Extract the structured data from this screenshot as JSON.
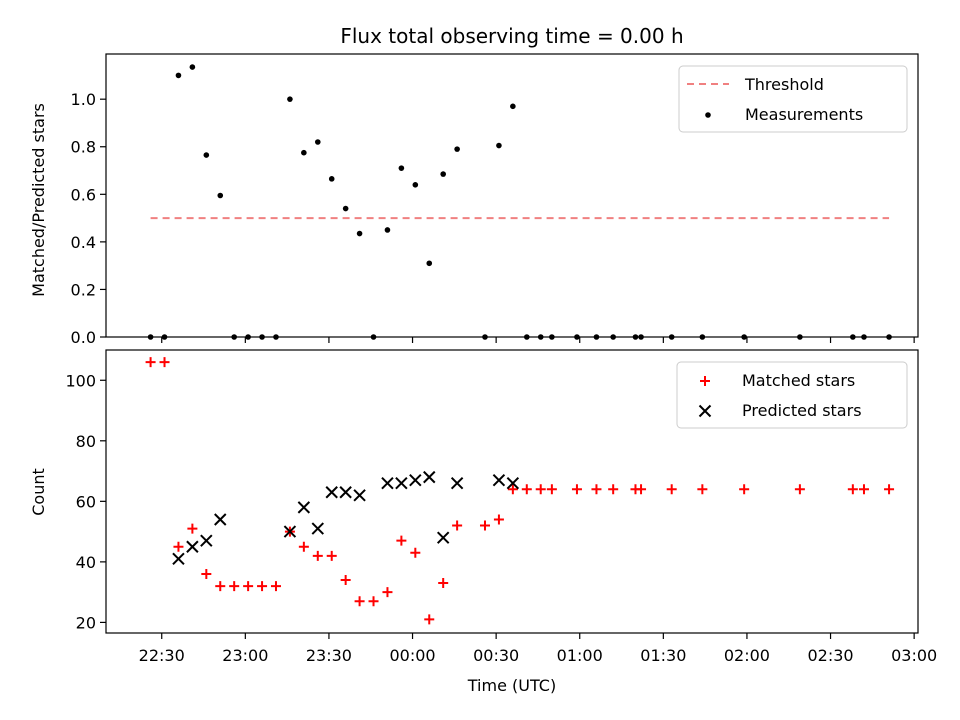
{
  "chart_data": {
    "title": "Flux total observing time = 0.00 h",
    "xlabel": "Time (UTC)",
    "x_ticks": [
      "22:30",
      "23:00",
      "23:30",
      "00:00",
      "00:30",
      "01:00",
      "01:30",
      "02:00",
      "02:30",
      "03:00"
    ],
    "panels": [
      {
        "type": "scatter",
        "ylabel": "Matched/Predicted stars",
        "ylim": [
          0,
          1.19
        ],
        "y_ticks": [
          "0.0",
          "0.2",
          "0.4",
          "0.6",
          "0.8",
          "1.0"
        ],
        "legend": {
          "position": "top-right"
        },
        "series": [
          {
            "name": "Threshold",
            "kind": "dashed-line",
            "color": "#f08080",
            "points": [
              [
                "22:26",
                0.5
              ],
              [
                "02:51",
                0.5
              ]
            ]
          },
          {
            "name": "Measurements",
            "kind": "dot",
            "color": "#000000",
            "points": [
              [
                "22:26",
                0
              ],
              [
                "22:31",
                0
              ],
              [
                "22:36",
                1.1
              ],
              [
                "22:41",
                1.135
              ],
              [
                "22:46",
                0.765
              ],
              [
                "22:51",
                0.595
              ],
              [
                "22:56",
                0
              ],
              [
                "23:01",
                0
              ],
              [
                "23:06",
                0
              ],
              [
                "23:11",
                0
              ],
              [
                "23:16",
                1.0
              ],
              [
                "23:21",
                0.775
              ],
              [
                "23:26",
                0.82
              ],
              [
                "23:31",
                0.665
              ],
              [
                "23:36",
                0.54
              ],
              [
                "23:41",
                0.435
              ],
              [
                "23:46",
                0
              ],
              [
                "23:51",
                0.45
              ],
              [
                "23:56",
                0.71
              ],
              [
                "00:01",
                0.64
              ],
              [
                "00:06",
                0.31
              ],
              [
                "00:11",
                0.685
              ],
              [
                "00:16",
                0.79
              ],
              [
                "00:26",
                0
              ],
              [
                "00:31",
                0.805
              ],
              [
                "00:36",
                0.97
              ],
              [
                "00:41",
                0
              ],
              [
                "00:46",
                0
              ],
              [
                "00:50",
                0
              ],
              [
                "00:59",
                0
              ],
              [
                "01:06",
                0
              ],
              [
                "01:12",
                0
              ],
              [
                "01:20",
                0
              ],
              [
                "01:22",
                0
              ],
              [
                "01:33",
                0
              ],
              [
                "01:44",
                0
              ],
              [
                "01:59",
                0
              ],
              [
                "02:19",
                0
              ],
              [
                "02:38",
                0
              ],
              [
                "02:42",
                0
              ],
              [
                "02:51",
                0
              ]
            ]
          }
        ]
      },
      {
        "type": "scatter",
        "ylabel": "Count",
        "ylim": [
          16.5,
          110
        ],
        "y_ticks": [
          "20",
          "40",
          "60",
          "80",
          "100"
        ],
        "legend": {
          "position": "top-right"
        },
        "series": [
          {
            "name": "Matched stars",
            "marker": "plus",
            "color": "#ff0000",
            "points": [
              [
                "22:26",
                106
              ],
              [
                "22:31",
                106
              ],
              [
                "22:36",
                45
              ],
              [
                "22:41",
                51
              ],
              [
                "22:46",
                36
              ],
              [
                "22:51",
                32
              ],
              [
                "22:56",
                32
              ],
              [
                "23:01",
                32
              ],
              [
                "23:06",
                32
              ],
              [
                "23:11",
                32
              ],
              [
                "23:16",
                50
              ],
              [
                "23:21",
                45
              ],
              [
                "23:26",
                42
              ],
              [
                "23:31",
                42
              ],
              [
                "23:36",
                34
              ],
              [
                "23:41",
                27
              ],
              [
                "23:46",
                27
              ],
              [
                "23:51",
                30
              ],
              [
                "23:56",
                47
              ],
              [
                "00:01",
                43
              ],
              [
                "00:06",
                21
              ],
              [
                "00:11",
                33
              ],
              [
                "00:16",
                52
              ],
              [
                "00:26",
                52
              ],
              [
                "00:31",
                54
              ],
              [
                "00:36",
                64
              ],
              [
                "00:41",
                64
              ],
              [
                "00:46",
                64
              ],
              [
                "00:50",
                64
              ],
              [
                "00:59",
                64
              ],
              [
                "01:06",
                64
              ],
              [
                "01:12",
                64
              ],
              [
                "01:20",
                64
              ],
              [
                "01:22",
                64
              ],
              [
                "01:33",
                64
              ],
              [
                "01:44",
                64
              ],
              [
                "01:59",
                64
              ],
              [
                "02:19",
                64
              ],
              [
                "02:38",
                64
              ],
              [
                "02:42",
                64
              ],
              [
                "02:51",
                64
              ]
            ]
          },
          {
            "name": "Predicted stars",
            "marker": "x",
            "color": "#000000",
            "points": [
              [
                "22:36",
                41
              ],
              [
                "22:41",
                45
              ],
              [
                "22:46",
                47
              ],
              [
                "22:51",
                54
              ],
              [
                "23:16",
                50
              ],
              [
                "23:21",
                58
              ],
              [
                "23:26",
                51
              ],
              [
                "23:31",
                63
              ],
              [
                "23:36",
                63
              ],
              [
                "23:41",
                62
              ],
              [
                "23:51",
                66
              ],
              [
                "23:56",
                66
              ],
              [
                "00:01",
                67
              ],
              [
                "00:06",
                68
              ],
              [
                "00:11",
                48
              ],
              [
                "00:16",
                66
              ],
              [
                "00:31",
                67
              ],
              [
                "00:36",
                66
              ]
            ]
          }
        ]
      }
    ]
  }
}
